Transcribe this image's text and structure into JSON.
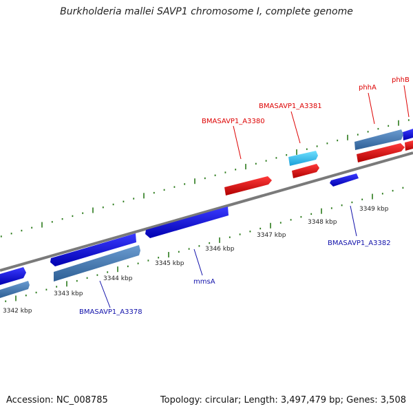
{
  "title": "Burkholderia mallei SAVP1 chromosome I, complete genome",
  "footer": {
    "accession": "Accession: NC_008785",
    "summary": "Topology: circular; Length: 3,497,479 bp; Genes: 3,508"
  },
  "colors": {
    "backbone": "#888888",
    "forward_cds": "#1010e0",
    "forward_gene": "#4a7fb5",
    "reverse_cds": "#e01010",
    "reverse_gene": "#2bb7ef",
    "tick": "#2a7a1a",
    "label_forward": "#1010aa",
    "label_reverse": "#dd0000"
  },
  "scale_labels": [
    "3342 kbp",
    "3343 kbp",
    "3344 kbp",
    "3345 kbp",
    "3346 kbp",
    "3347 kbp",
    "3348 kbp",
    "3349 kbp"
  ],
  "gene_labels": {
    "bmasavp1_a3378": "BMASAVP1_A3378",
    "mmsa": "mmsA",
    "bmasavp1_a3382": "BMASAVP1_A3382",
    "bmasavp1_a3380": "BMASAVP1_A3380",
    "bmasavp1_a3381": "BMASAVP1_A3381",
    "phha": "phhA",
    "phhb": "phhB"
  }
}
